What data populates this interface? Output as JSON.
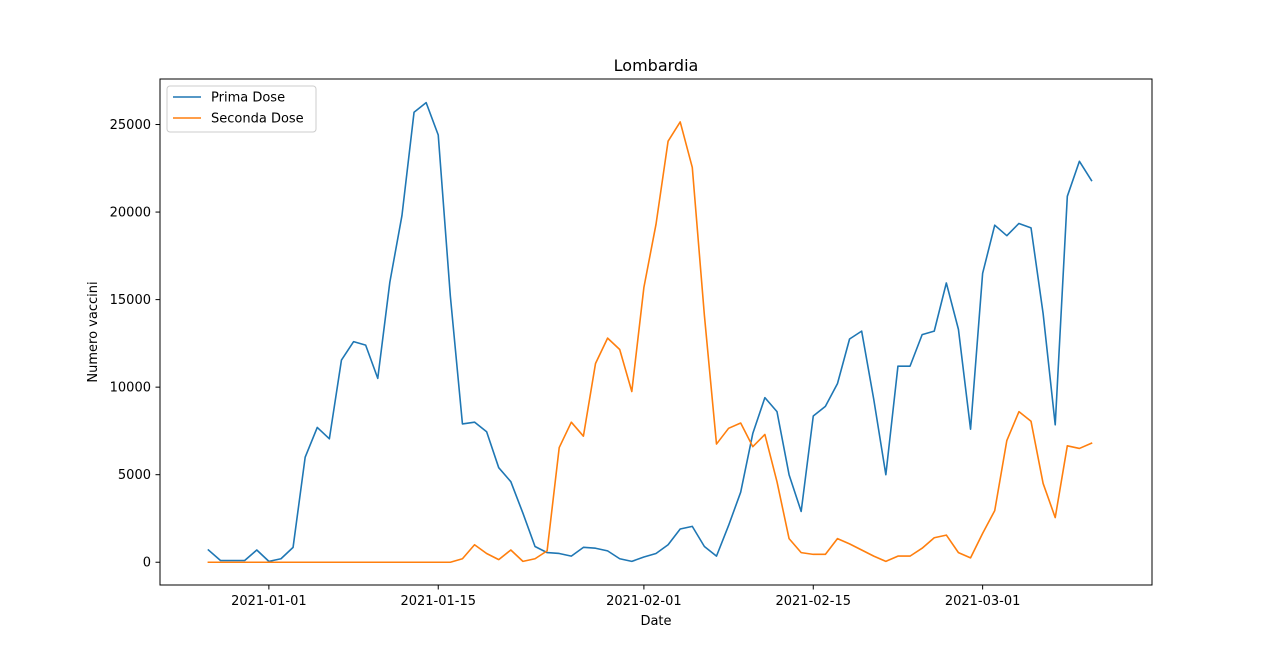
{
  "chart_data": {
    "type": "line",
    "title": "Lombardia",
    "xlabel": "Date",
    "ylabel": "Numero vaccini",
    "x_start": "2020-12-27",
    "x_end": "2021-03-11",
    "xlim": [
      "2020-12-23",
      "2021-03-15"
    ],
    "ylim": [
      -1300,
      27600
    ],
    "x_ticks": [
      "2021-01-01",
      "2021-01-15",
      "2021-02-01",
      "2021-02-15",
      "2021-03-01"
    ],
    "y_ticks": [
      0,
      5000,
      10000,
      15000,
      20000,
      25000
    ],
    "grid": false,
    "legend_position": "top-left",
    "series": [
      {
        "name": "Prima Dose",
        "color": "#1f77b4",
        "values": [
          700,
          100,
          100,
          100,
          700,
          50,
          200,
          850,
          6000,
          7700,
          7050,
          11550,
          12600,
          12400,
          10500,
          16000,
          19800,
          25700,
          26250,
          24400,
          15200,
          7900,
          8000,
          7450,
          5400,
          4600,
          2800,
          900,
          550,
          500,
          350,
          850,
          800,
          650,
          200,
          50,
          300,
          500,
          1000,
          1900,
          2050,
          900,
          350,
          2100,
          4000,
          7350,
          9400,
          8600,
          5000,
          2900,
          8350,
          8900,
          10200,
          12750,
          13200,
          9300,
          5000,
          11200,
          11200,
          13000,
          13200,
          15950,
          13300,
          7600,
          16500,
          19250,
          18650,
          19350,
          19100,
          14200,
          7850,
          20900,
          22900,
          21800
        ]
      },
      {
        "name": "Seconda Dose",
        "color": "#ff7f0e",
        "values": [
          0,
          0,
          0,
          0,
          0,
          0,
          0,
          0,
          0,
          0,
          0,
          0,
          0,
          0,
          0,
          0,
          0,
          0,
          0,
          0,
          0,
          200,
          1000,
          500,
          150,
          700,
          50,
          200,
          650,
          6550,
          8000,
          7200,
          11350,
          12800,
          12150,
          9750,
          15700,
          19300,
          24050,
          25150,
          22550,
          14100,
          6750,
          7650,
          7950,
          6600,
          7300,
          4600,
          1350,
          550,
          450,
          450,
          1350,
          1050,
          700,
          350,
          50,
          350,
          350,
          800,
          1400,
          1550,
          550,
          250,
          1650,
          2950,
          6950,
          8600,
          8050,
          4500,
          2550,
          6650,
          6500,
          6800
        ]
      }
    ]
  }
}
